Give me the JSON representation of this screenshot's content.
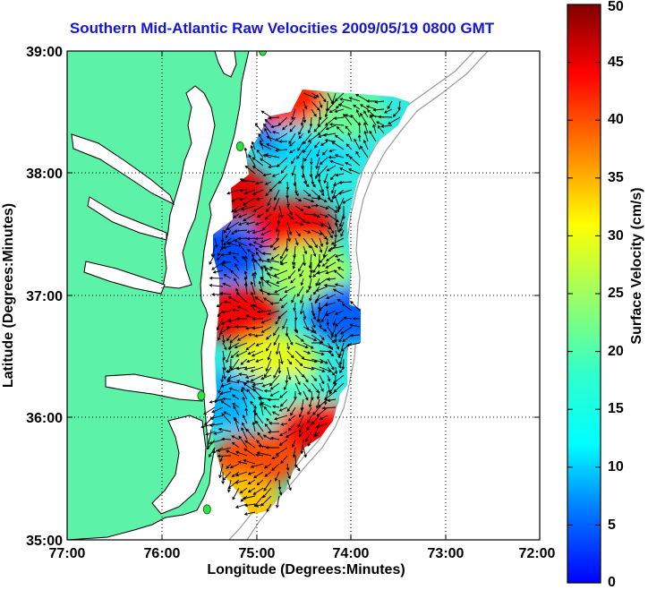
{
  "title": "Southern Mid-Atlantic Raw Velocities 2009/05/19 0800 GMT",
  "map": {
    "xlabel": "Longitude (Degrees:Minutes)",
    "ylabel": "Latitude (Degrees:Minutes)",
    "lon_ticks": [
      "77:00",
      "76:00",
      "75:00",
      "74:00",
      "73:00",
      "72:00"
    ],
    "lat_ticks": [
      "39:00",
      "38:00",
      "37:00",
      "36:00",
      "35:00"
    ],
    "lon_range": [
      -77,
      -72
    ],
    "lat_range": [
      35,
      39
    ],
    "land_color": "#5cf2a8",
    "coast_color": "#000000",
    "bathymetry_color": "#9a9a9a",
    "stations": [
      {
        "lon": -74.93,
        "lat": 39.0
      },
      {
        "lon": -75.17,
        "lat": 38.22
      },
      {
        "lon": -75.58,
        "lat": 36.18
      },
      {
        "lon": -75.52,
        "lat": 35.25
      }
    ]
  },
  "colorbar": {
    "label": "Surface Velocity (cm/s)",
    "min": 0,
    "max": 50,
    "ticks": [
      "0",
      "5",
      "10",
      "15",
      "20",
      "25",
      "30",
      "35",
      "40",
      "45",
      "50"
    ],
    "colormap": "jet"
  },
  "velocity_regions": [
    {
      "name": "north-cyan",
      "lon": -74.6,
      "lat": 38.35,
      "speed": 12
    },
    {
      "name": "north-green",
      "lon": -74.35,
      "lat": 38.3,
      "speed": 17
    },
    {
      "name": "northeast-yellow",
      "lon": -74.1,
      "lat": 38.5,
      "speed": 24
    },
    {
      "name": "north-red-tip",
      "lon": -74.7,
      "lat": 38.62,
      "speed": 42
    },
    {
      "name": "west-red-band",
      "lon": -75.3,
      "lat": 37.85,
      "speed": 45
    },
    {
      "name": "center-red-band",
      "lon": -74.6,
      "lat": 37.55,
      "speed": 44
    },
    {
      "name": "west-cyan",
      "lon": -75.35,
      "lat": 37.35,
      "speed": 10
    },
    {
      "name": "center-yellow",
      "lon": -74.45,
      "lat": 37.2,
      "speed": 27
    },
    {
      "name": "east-cyan",
      "lon": -74.0,
      "lat": 36.85,
      "speed": 11
    },
    {
      "name": "south-red-west",
      "lon": -75.2,
      "lat": 36.85,
      "speed": 44
    },
    {
      "name": "south-yellow",
      "lon": -74.8,
      "lat": 36.45,
      "speed": 30
    },
    {
      "name": "south-cyan",
      "lon": -75.3,
      "lat": 36.15,
      "speed": 15
    },
    {
      "name": "south-green",
      "lon": -74.6,
      "lat": 36.1,
      "speed": 21
    },
    {
      "name": "southeast-red",
      "lon": -74.35,
      "lat": 35.9,
      "speed": 44
    },
    {
      "name": "hatteras-red",
      "lon": -75.0,
      "lat": 35.65,
      "speed": 40
    },
    {
      "name": "hatteras-orange",
      "lon": -75.2,
      "lat": 35.3,
      "speed": 34
    }
  ]
}
